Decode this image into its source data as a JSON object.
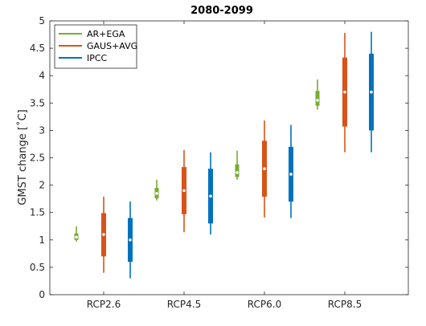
{
  "chart_data": {
    "type": "box",
    "title": "2080-2099",
    "xlabel": "",
    "ylabel": "GMST change [˚C]",
    "categories": [
      "RCP2.6",
      "RCP4.5",
      "RCP6.0",
      "RCP8.5"
    ],
    "ylim": [
      0,
      5
    ],
    "yticks": [
      0,
      0.5,
      1,
      1.5,
      2,
      2.5,
      3,
      3.5,
      4,
      4.5,
      5
    ],
    "ytick_labels": [
      "0",
      "0.5",
      "1",
      "1.5",
      "2",
      "2.5",
      "3",
      "3.5",
      "4",
      "4.5",
      "5"
    ],
    "grid": false,
    "legend_position": "top-left",
    "series": [
      {
        "name": "AR+EGA",
        "color": "#77ac30",
        "whisker_low": [
          0.97,
          1.72,
          2.1,
          3.38
        ],
        "q1": [
          1.0,
          1.76,
          2.15,
          3.45
        ],
        "median": [
          1.05,
          1.85,
          2.23,
          3.55
        ],
        "q3": [
          1.12,
          1.95,
          2.38,
          3.72
        ],
        "whisker_high": [
          1.25,
          2.1,
          2.63,
          3.93
        ]
      },
      {
        "name": "GAUS+AVG",
        "color": "#d95319",
        "whisker_low": [
          0.4,
          1.14,
          1.41,
          2.6
        ],
        "q1": [
          0.7,
          1.47,
          1.79,
          3.07
        ],
        "median": [
          1.1,
          1.9,
          2.3,
          3.7
        ],
        "q3": [
          1.49,
          2.33,
          2.81,
          4.33
        ],
        "whisker_high": [
          1.79,
          2.64,
          3.18,
          4.78
        ]
      },
      {
        "name": "IPCC",
        "color": "#0072bd",
        "whisker_low": [
          0.3,
          1.1,
          1.4,
          2.6
        ],
        "q1": [
          0.6,
          1.3,
          1.7,
          3.0
        ],
        "median": [
          1.0,
          1.8,
          2.2,
          3.7
        ],
        "q3": [
          1.4,
          2.3,
          2.7,
          4.4
        ],
        "whisker_high": [
          1.7,
          2.6,
          3.1,
          4.8
        ]
      }
    ]
  }
}
